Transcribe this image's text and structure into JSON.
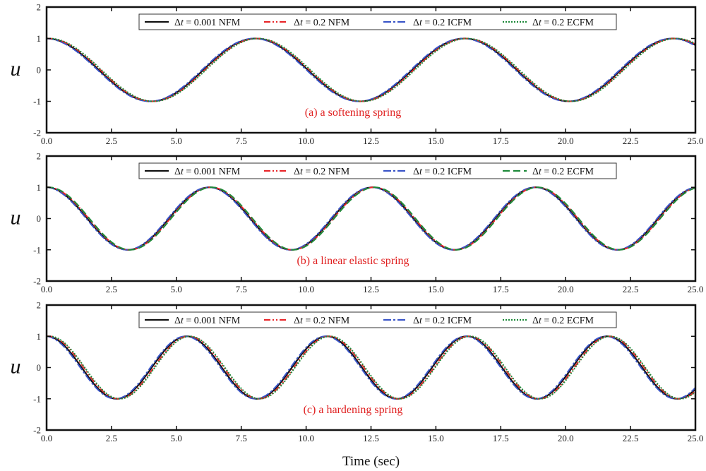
{
  "chart_data": [
    {
      "type": "line",
      "annotation": "(a)  a softening spring",
      "ylabel": "u",
      "xlim": [
        0,
        25
      ],
      "ylim": [
        -2,
        2
      ],
      "x_ticks": [
        "0.0",
        "2.5",
        "5.0",
        "7.5",
        "10.0",
        "12.5",
        "15.0",
        "17.5",
        "20.0",
        "22.5",
        "25.0"
      ],
      "y_ticks": [
        "2",
        "1",
        "0",
        "-1",
        "-2"
      ],
      "legend": [
        {
          "delta": "Δ",
          "var": "t",
          "rest": " = 0.001 NFM"
        },
        {
          "delta": "Δ",
          "var": "t",
          "rest": " = 0.2 NFM"
        },
        {
          "delta": "Δ",
          "var": "t",
          "rest": " = 0.2 ICFM"
        },
        {
          "delta": "Δ",
          "var": "t",
          "rest": " = 0.2 ECFM"
        }
      ],
      "series": [
        {
          "period": 8.05,
          "phase_shift": 0.0
        },
        {
          "period": 8.05,
          "phase_shift": 0.06
        },
        {
          "period": 8.05,
          "phase_shift": -0.05
        },
        {
          "period": 8.05,
          "phase_shift": 0.1
        }
      ]
    },
    {
      "type": "line",
      "annotation": "(b)  a linear elastic spring",
      "ylabel": "u",
      "xlim": [
        0,
        25
      ],
      "ylim": [
        -2,
        2
      ],
      "x_ticks": [
        "0.0",
        "2.5",
        "5.0",
        "7.5",
        "10.0",
        "12.5",
        "15.0",
        "17.5",
        "20.0",
        "22.5",
        "25.0"
      ],
      "y_ticks": [
        "2",
        "1",
        "0",
        "-1",
        "-2"
      ],
      "legend": [
        {
          "delta": "Δ",
          "var": "t",
          "rest": " = 0.001 NFM"
        },
        {
          "delta": "Δ",
          "var": "t",
          "rest": " = 0.2 NFM"
        },
        {
          "delta": "Δ",
          "var": "t",
          "rest": " = 0.2 ICFM"
        },
        {
          "delta": "Δ",
          "var": "t",
          "rest": " = 0.2 ECFM"
        }
      ],
      "series": [
        {
          "period": 6.2832,
          "phase_shift": 0.0
        },
        {
          "period": 6.2832,
          "phase_shift": 0.05
        },
        {
          "period": 6.2832,
          "phase_shift": -0.04
        },
        {
          "period": 6.2832,
          "phase_shift": 0.08
        }
      ]
    },
    {
      "type": "line",
      "annotation": "(c)  a hardening spring",
      "ylabel": "u",
      "xlabel": "Time  (sec)",
      "xlim": [
        0,
        25
      ],
      "ylim": [
        -2,
        2
      ],
      "x_ticks": [
        "0.0",
        "2.5",
        "5.0",
        "7.5",
        "10.0",
        "12.5",
        "15.0",
        "17.5",
        "20.0",
        "22.5",
        "25.0"
      ],
      "y_ticks": [
        "2",
        "1",
        "0",
        "-1",
        "-2"
      ],
      "legend": [
        {
          "delta": "Δ",
          "var": "t",
          "rest": " = 0.001 NFM"
        },
        {
          "delta": "Δ",
          "var": "t",
          "rest": " = 0.2 NFM"
        },
        {
          "delta": "Δ",
          "var": "t",
          "rest": " = 0.2 ICFM"
        },
        {
          "delta": "Δ",
          "var": "t",
          "rest": " = 0.2 ECFM"
        }
      ],
      "series": [
        {
          "period": 5.4,
          "phase_shift": 0.0
        },
        {
          "period": 5.4,
          "phase_shift": 0.08
        },
        {
          "period": 5.4,
          "phase_shift": -0.05
        },
        {
          "period": 5.4,
          "phase_shift": 0.12
        }
      ]
    }
  ],
  "style": {
    "series_colors": [
      "#111111",
      "#e8262a",
      "#3a55c8",
      "#1e8a3a"
    ],
    "annotation_color": "#e02020",
    "frame_color": "#111111"
  }
}
